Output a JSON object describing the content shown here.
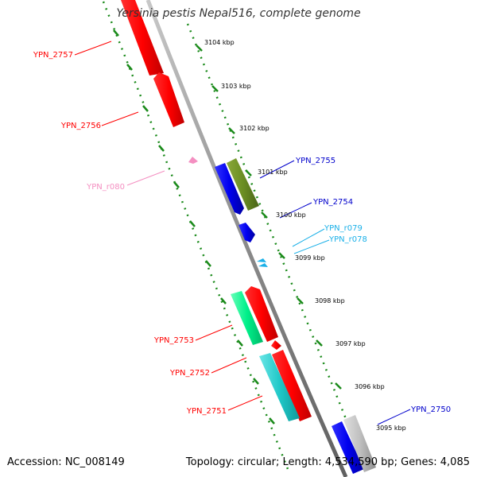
{
  "title": "Yersinia pestis Nepal516, complete genome",
  "footer": {
    "accession": "Accession: NC_008149",
    "stats": "Topology: circular; Length: 4,534,590 bp; Genes: 4,085"
  },
  "ticks": [
    {
      "label": "3104 kbp"
    },
    {
      "label": "3103 kbp"
    },
    {
      "label": "3102 kbp"
    },
    {
      "label": "3101 kbp"
    },
    {
      "label": "3100 kbp"
    },
    {
      "label": "3099 kbp"
    },
    {
      "label": "3098 kbp"
    },
    {
      "label": "3097 kbp"
    },
    {
      "label": "3096 kbp"
    },
    {
      "label": "3095 kbp"
    }
  ],
  "genes": [
    {
      "label": "YPN_2757",
      "color": "#ff0000"
    },
    {
      "label": "YPN_2756",
      "color": "#ff0000"
    },
    {
      "label": "YPN_r080",
      "color": "#f48fc1"
    },
    {
      "label": "YPN_2755",
      "color": "#0000cc"
    },
    {
      "label": "YPN_2754",
      "color": "#0000cc"
    },
    {
      "label": "YPN_r079",
      "color": "#1ab0e8"
    },
    {
      "label": "YPN_r078",
      "color": "#1ab0e8"
    },
    {
      "label": "YPN_2753",
      "color": "#ff0000"
    },
    {
      "label": "YPN_2752",
      "color": "#ff0000"
    },
    {
      "label": "YPN_2751",
      "color": "#ff0000"
    },
    {
      "label": "YPN_2750",
      "color": "#0000cc"
    }
  ],
  "colors": {
    "backbone": "#8a8a8a",
    "ticks": "#1a8a1a",
    "red": "#ff0000",
    "blue": "#0000ff",
    "olive": "#6b8e23",
    "spring": "#00ff88",
    "cyan": "#20c8c8",
    "grey": "#b0b0b0",
    "pink": "#f48fc1",
    "skyblue": "#1ab0e8"
  }
}
